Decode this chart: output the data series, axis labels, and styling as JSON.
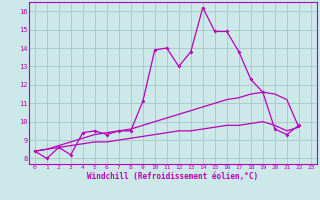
{
  "xlabel": "Windchill (Refroidissement éolien,°C)",
  "background_color": "#cce8e8",
  "grid_color": "#aacccc",
  "line_color": "#bb00bb",
  "x_values": [
    0,
    1,
    2,
    3,
    4,
    5,
    6,
    7,
    8,
    9,
    10,
    11,
    12,
    13,
    14,
    15,
    16,
    17,
    18,
    19,
    20,
    21,
    22,
    23
  ],
  "series1": [
    8.4,
    8.0,
    8.6,
    8.2,
    9.4,
    9.5,
    9.3,
    9.5,
    9.5,
    11.1,
    13.9,
    14.0,
    13.0,
    13.8,
    16.2,
    14.9,
    14.9,
    13.8,
    12.3,
    11.6,
    9.6,
    9.3,
    9.8,
    null
  ],
  "series2": [
    8.4,
    8.5,
    8.7,
    8.9,
    9.1,
    9.3,
    9.4,
    9.5,
    9.6,
    9.8,
    10.0,
    10.2,
    10.4,
    10.6,
    10.8,
    11.0,
    11.2,
    11.3,
    11.5,
    11.6,
    11.5,
    11.2,
    9.7,
    null
  ],
  "series3": [
    8.4,
    8.5,
    8.6,
    8.7,
    8.8,
    8.9,
    8.9,
    9.0,
    9.1,
    9.2,
    9.3,
    9.4,
    9.5,
    9.5,
    9.6,
    9.7,
    9.8,
    9.8,
    9.9,
    10.0,
    9.8,
    9.5,
    9.7,
    null
  ],
  "ylim": [
    7.7,
    16.5
  ],
  "xlim": [
    -0.5,
    23.5
  ],
  "yticks": [
    8,
    9,
    10,
    11,
    12,
    13,
    14,
    15,
    16
  ],
  "xticks": [
    0,
    1,
    2,
    3,
    4,
    5,
    6,
    7,
    8,
    9,
    10,
    11,
    12,
    13,
    14,
    15,
    16,
    17,
    18,
    19,
    20,
    21,
    22,
    23
  ]
}
